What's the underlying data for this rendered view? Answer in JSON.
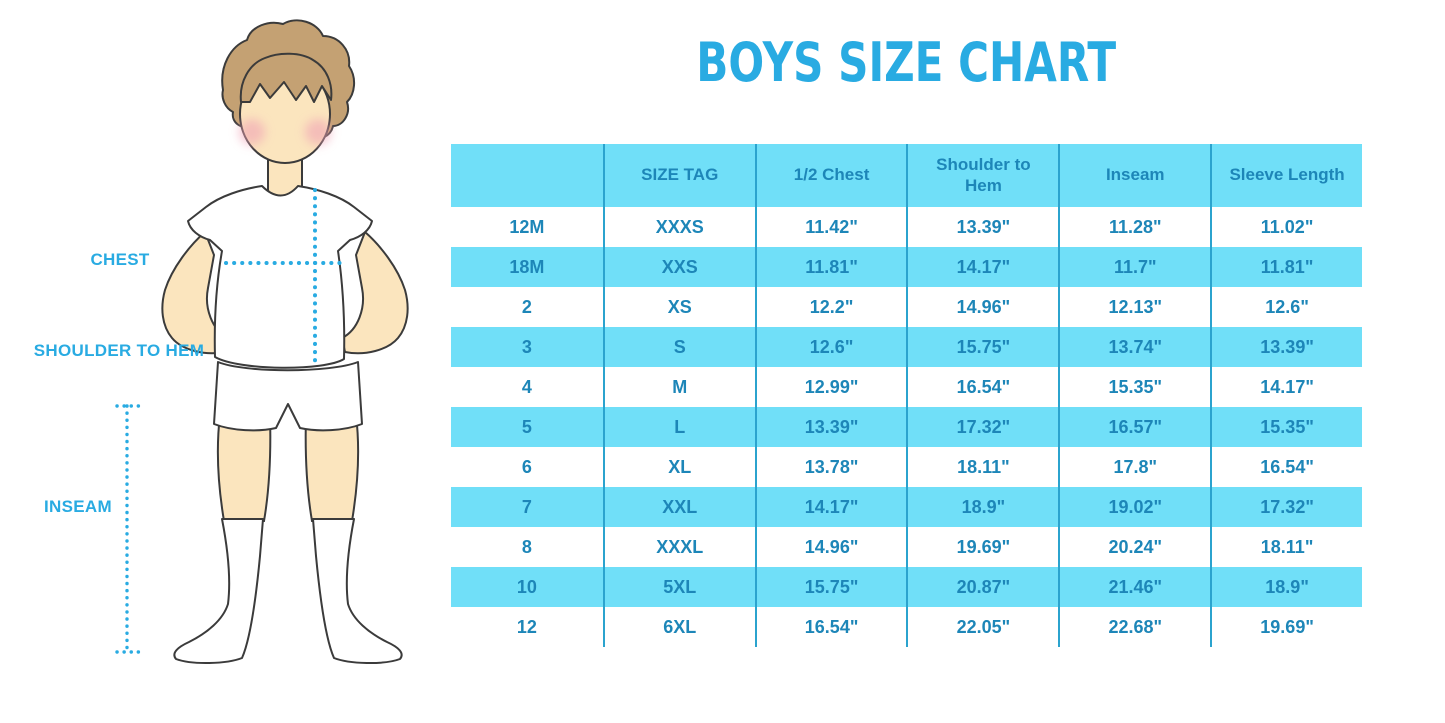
{
  "title": "BOYS SIZE CHART",
  "figure": {
    "chest_label": "CHEST",
    "shoulder_to_hem_label": "SHOULDER TO HEM",
    "inseam_label": "INSEAM"
  },
  "table": {
    "headers": [
      "",
      "SIZE TAG",
      "1/2 Chest",
      "Shoulder to Hem",
      "Inseam",
      "Sleeve Length"
    ],
    "rows": [
      [
        "12M",
        "XXXS",
        "11.42\"",
        "13.39\"",
        "11.28\"",
        "11.02\""
      ],
      [
        "18M",
        "XXS",
        "11.81\"",
        "14.17\"",
        "11.7\"",
        "11.81\""
      ],
      [
        "2",
        "XS",
        "12.2\"",
        "14.96\"",
        "12.13\"",
        "12.6\""
      ],
      [
        "3",
        "S",
        "12.6\"",
        "15.75\"",
        "13.74\"",
        "13.39\""
      ],
      [
        "4",
        "M",
        "12.99\"",
        "16.54\"",
        "15.35\"",
        "14.17\""
      ],
      [
        "5",
        "L",
        "13.39\"",
        "17.32\"",
        "16.57\"",
        "15.35\""
      ],
      [
        "6",
        "XL",
        "13.78\"",
        "18.11\"",
        "17.8\"",
        "16.54\""
      ],
      [
        "7",
        "XXL",
        "14.17\"",
        "18.9\"",
        "19.02\"",
        "17.32\""
      ],
      [
        "8",
        "XXXL",
        "14.96\"",
        "19.69\"",
        "20.24\"",
        "18.11\""
      ],
      [
        "10",
        "5XL",
        "15.75\"",
        "20.87\"",
        "21.46\"",
        "18.9\""
      ],
      [
        "12",
        "6XL",
        "16.54\"",
        "22.05\"",
        "22.68\"",
        "19.69\""
      ]
    ]
  },
  "colors": {
    "accent_blue": "#29ABE2",
    "table_fill_blue": "#70DFF8",
    "table_text_blue": "#1D86B8",
    "table_divider_blue": "#2BA3CE",
    "skin": "#FBE5BE",
    "hair": "#C4A173",
    "blush": "#F0A3B5",
    "outline": "#3B3B3B"
  }
}
